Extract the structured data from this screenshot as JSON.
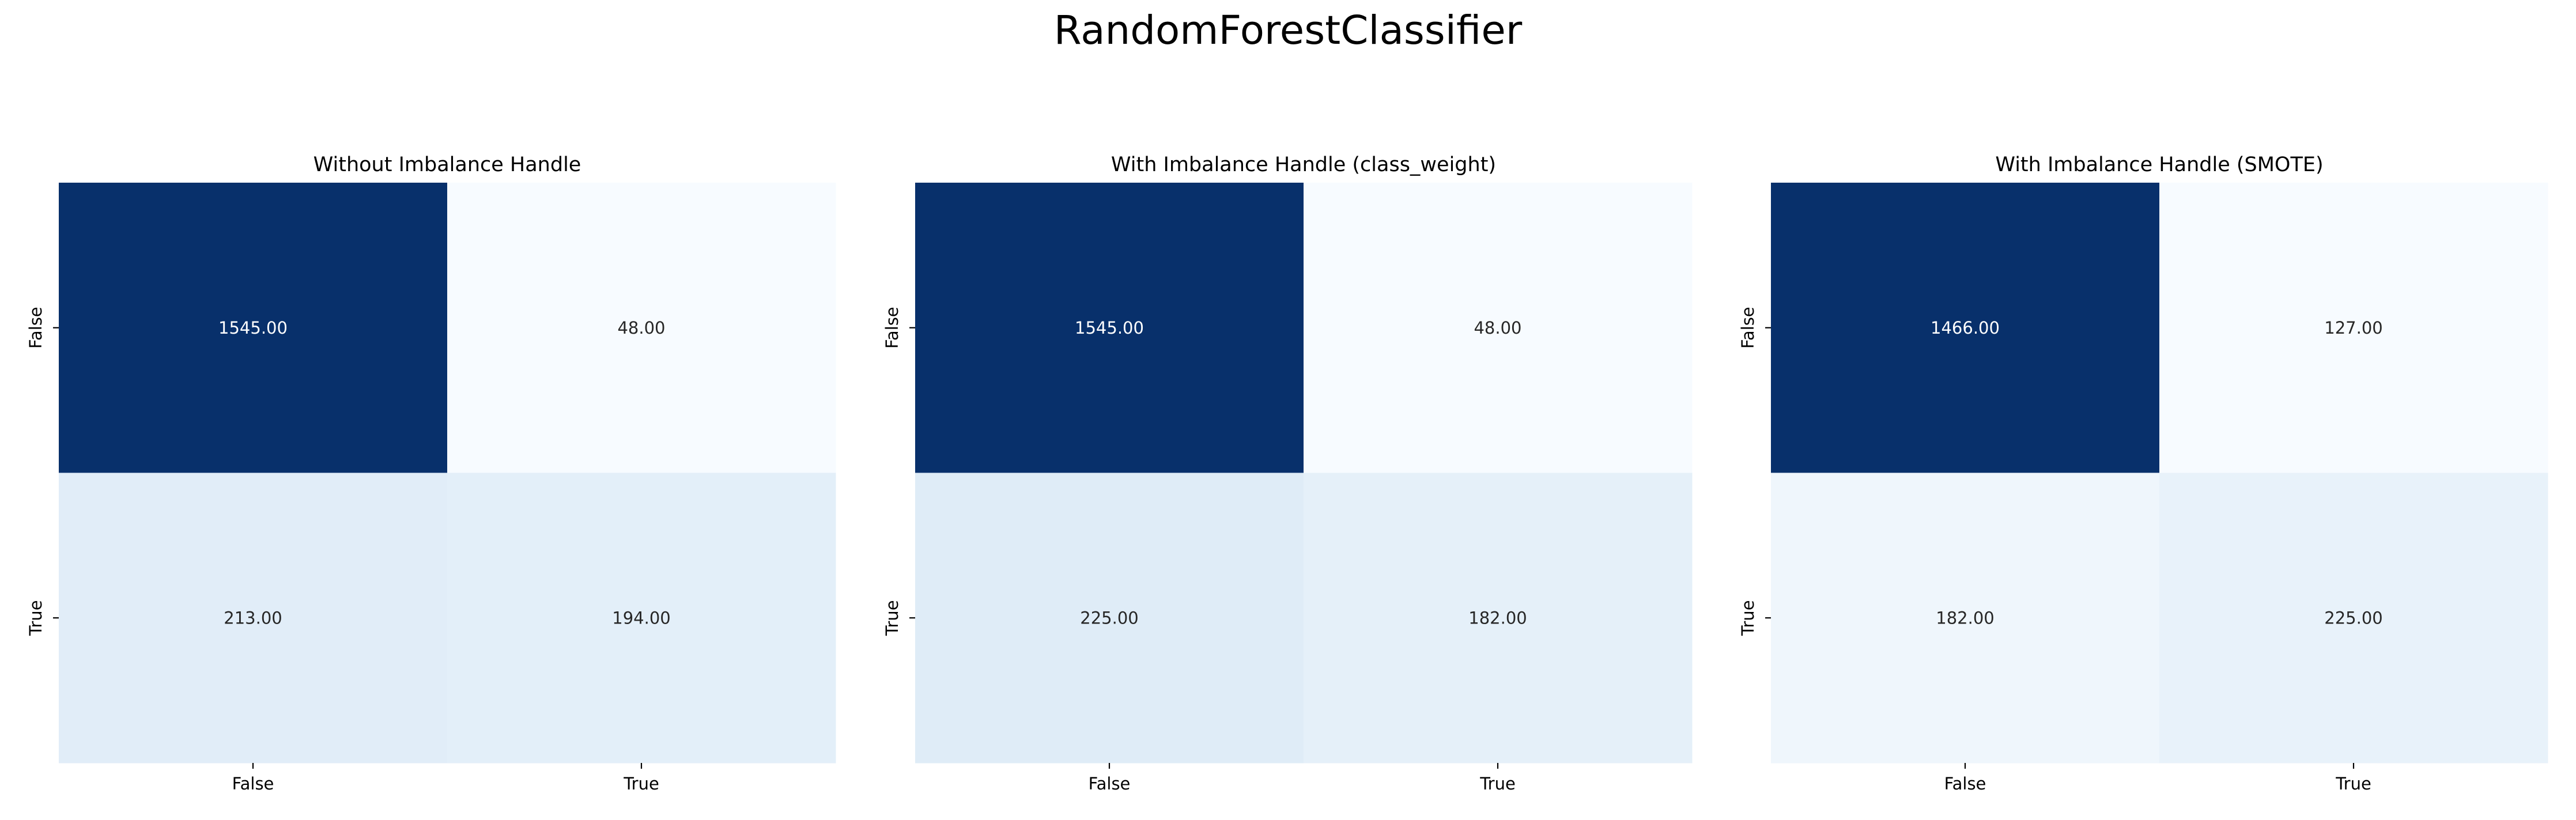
{
  "figure_title": "RandomForestClassifier",
  "colormap": {
    "name": "Blues",
    "low": "#f7fbff",
    "high": "#08306b",
    "text_on_dark": "#ffffff",
    "text_on_light": "#262626"
  },
  "chart_data": [
    {
      "type": "heatmap",
      "title": "Without Imbalance Handle",
      "xticklabels": [
        "False",
        "True"
      ],
      "yticklabels": [
        "False",
        "True"
      ],
      "values": [
        [
          1545.0,
          48.0
        ],
        [
          213.0,
          194.0
        ]
      ],
      "cell_labels": [
        [
          "1545.00",
          "48.00"
        ],
        [
          "213.00",
          "194.00"
        ]
      ],
      "colorbar": false
    },
    {
      "type": "heatmap",
      "title": "With Imbalance Handle (class_weight)",
      "xticklabels": [
        "False",
        "True"
      ],
      "yticklabels": [
        "False",
        "True"
      ],
      "values": [
        [
          1545.0,
          48.0
        ],
        [
          225.0,
          182.0
        ]
      ],
      "cell_labels": [
        [
          "1545.00",
          "48.00"
        ],
        [
          "225.00",
          "182.00"
        ]
      ],
      "colorbar": false
    },
    {
      "type": "heatmap",
      "title": "With Imbalance Handle (SMOTE)",
      "xticklabels": [
        "False",
        "True"
      ],
      "yticklabels": [
        "False",
        "True"
      ],
      "values": [
        [
          1466.0,
          127.0
        ],
        [
          182.0,
          225.0
        ]
      ],
      "cell_labels": [
        [
          "1466.00",
          "127.00"
        ],
        [
          "182.00",
          "225.00"
        ]
      ],
      "colorbar": false
    }
  ]
}
